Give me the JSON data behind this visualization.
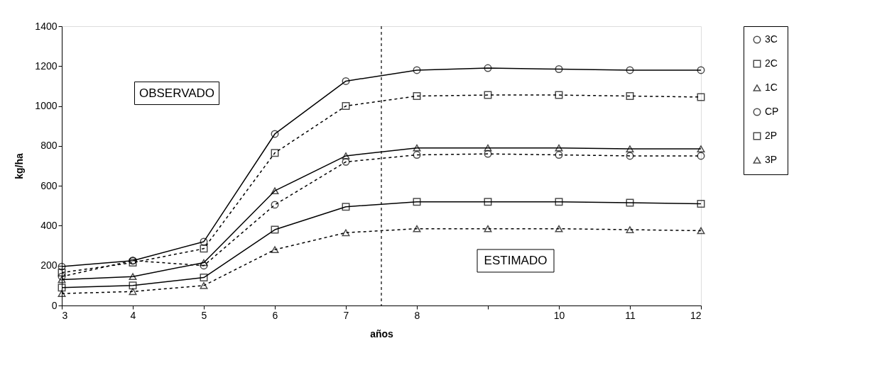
{
  "chart_data": {
    "type": "line",
    "xlabel": "años",
    "ylabel": "kg/ha",
    "x": [
      3,
      4,
      5,
      6,
      7,
      8,
      9,
      10,
      11,
      12
    ],
    "series": [
      {
        "name": "3C",
        "color": "#000000",
        "marker": "circle",
        "line_style": "solid",
        "values": [
          195,
          225,
          320,
          860,
          1125,
          1180,
          1190,
          1185,
          1180,
          1180
        ]
      },
      {
        "name": "2C",
        "color": "#000000",
        "marker": "square",
        "line_style": "dashed",
        "values": [
          165,
          215,
          285,
          765,
          1000,
          1050,
          1055,
          1055,
          1050,
          1045
        ]
      },
      {
        "name": "1C",
        "color": "#000000",
        "marker": "triangle",
        "line_style": "solid",
        "values": [
          130,
          145,
          215,
          575,
          750,
          790,
          790,
          790,
          785,
          785
        ]
      },
      {
        "name": "CP",
        "color": "#000000",
        "marker": "circle",
        "line_style": "dashed",
        "values": [
          145,
          225,
          200,
          505,
          720,
          755,
          760,
          755,
          750,
          750
        ]
      },
      {
        "name": "2P",
        "color": "#000000",
        "marker": "square",
        "line_style": "solid",
        "values": [
          90,
          100,
          140,
          380,
          495,
          520,
          520,
          520,
          515,
          510
        ]
      },
      {
        "name": "3P",
        "color": "#000000",
        "marker": "triangle",
        "line_style": "dashed",
        "values": [
          60,
          70,
          100,
          280,
          365,
          385,
          385,
          385,
          380,
          375
        ]
      }
    ],
    "xlim": [
      3,
      12
    ],
    "xticks": [
      3,
      4,
      5,
      6,
      7,
      8,
      {
        "value": 9,
        "label": null
      },
      10,
      11,
      12
    ],
    "ylim": [
      0,
      1400
    ],
    "yticks": [
      0,
      200,
      400,
      600,
      800,
      1000,
      1200,
      1400
    ],
    "grid": false,
    "legend": "right",
    "ref_lines": [
      {
        "axis": "x",
        "value": 7.5,
        "line_style": "dashed",
        "color": "#000000"
      }
    ],
    "annotations": [
      "OBSERVADO",
      "ESTIMADO"
    ]
  }
}
